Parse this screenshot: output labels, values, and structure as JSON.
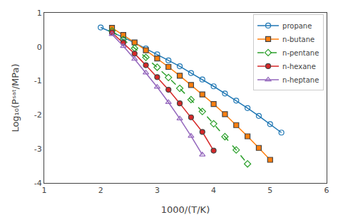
{
  "chart_data": {
    "type": "line",
    "xlabel": "1000/(T/K)",
    "ylabel": "Log₁₀(Pˢᵃᵗ/MPa)",
    "xlim": [
      1,
      6
    ],
    "ylim": [
      -4,
      1
    ],
    "xticks": [
      1,
      2,
      3,
      4,
      5,
      6
    ],
    "yticks": [
      -4,
      -3,
      -2,
      -1,
      0,
      1
    ],
    "grid": false,
    "legend": "upper right",
    "series": [
      {
        "name": "propane",
        "marker": "circle-open",
        "line_style": "solid",
        "x": [
          2.0,
          2.2,
          2.4,
          2.6,
          2.8,
          3.0,
          3.2,
          3.4,
          3.6,
          3.8,
          4.0,
          4.2,
          4.4,
          4.6,
          4.8,
          5.0,
          5.2
        ],
        "values": [
          0.57,
          0.43,
          0.28,
          0.12,
          -0.05,
          -0.22,
          -0.4,
          -0.57,
          -0.77,
          -0.96,
          -1.16,
          -1.37,
          -1.58,
          -1.8,
          -2.03,
          -2.27,
          -2.52
        ]
      },
      {
        "name": "n-butane",
        "marker": "square",
        "line_style": "solid",
        "x": [
          2.2,
          2.4,
          2.6,
          2.8,
          3.0,
          3.2,
          3.4,
          3.6,
          3.8,
          4.0,
          4.2,
          4.4,
          4.6,
          4.8,
          5.0
        ],
        "values": [
          0.56,
          0.35,
          0.13,
          -0.1,
          -0.34,
          -0.59,
          -0.85,
          -1.12,
          -1.4,
          -1.68,
          -1.98,
          -2.3,
          -2.63,
          -2.97,
          -3.32
        ]
      },
      {
        "name": "n-pentane",
        "marker": "diamond-open",
        "line_style": "dash",
        "x": [
          2.2,
          2.4,
          2.6,
          2.8,
          3.0,
          3.2,
          3.4,
          3.6,
          3.8,
          4.0,
          4.2,
          4.4,
          4.6
        ],
        "values": [
          0.47,
          0.22,
          -0.04,
          -0.31,
          -0.6,
          -0.9,
          -1.22,
          -1.55,
          -1.9,
          -2.26,
          -2.64,
          -3.03,
          -3.44
        ]
      },
      {
        "name": "n-hexane",
        "marker": "circle",
        "line_style": "solid",
        "x": [
          2.2,
          2.4,
          2.6,
          2.8,
          3.0,
          3.2,
          3.4,
          3.6,
          3.8,
          4.0
        ],
        "values": [
          0.42,
          0.12,
          -0.2,
          -0.54,
          -0.89,
          -1.26,
          -1.66,
          -2.07,
          -2.5,
          -3.05
        ]
      },
      {
        "name": "n-heptane",
        "marker": "triangle-up-open",
        "line_style": "solid",
        "x": [
          2.2,
          2.4,
          2.6,
          2.8,
          3.0,
          3.2,
          3.4,
          3.6,
          3.8
        ],
        "values": [
          0.37,
          0.02,
          -0.36,
          -0.76,
          -1.18,
          -1.63,
          -2.11,
          -2.62,
          -3.17
        ]
      }
    ]
  }
}
